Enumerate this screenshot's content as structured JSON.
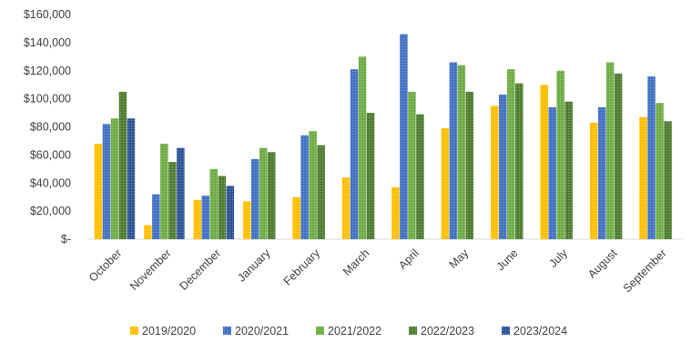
{
  "chart_data": {
    "type": "bar",
    "title": "",
    "xlabel": "",
    "ylabel": "",
    "ylim": [
      0,
      160000
    ],
    "y_ticks": [
      0,
      20000,
      40000,
      60000,
      80000,
      100000,
      120000,
      140000,
      160000
    ],
    "y_tick_labels": [
      "$-",
      "$20,000",
      "$40,000",
      "$60,000",
      "$80,000",
      "$100,000",
      "$120,000",
      "$140,000",
      "$160,000"
    ],
    "grid": false,
    "legend_position": "bottom",
    "categories": [
      "October",
      "November",
      "December",
      "January",
      "February",
      "March",
      "April",
      "May",
      "June",
      "July",
      "August",
      "September"
    ],
    "series": [
      {
        "name": "2019/2020",
        "color": "#FFC000",
        "values": [
          68000,
          10000,
          28000,
          27000,
          30000,
          44000,
          37000,
          79000,
          95000,
          110000,
          83000,
          87000
        ]
      },
      {
        "name": "2020/2021",
        "color": "#4472C4",
        "values": [
          82000,
          32000,
          31000,
          57000,
          74000,
          121000,
          146000,
          126000,
          103000,
          94000,
          94000,
          116000
        ]
      },
      {
        "name": "2021/2022",
        "color": "#70AD47",
        "values": [
          86000,
          68000,
          50000,
          65000,
          77000,
          130000,
          105000,
          124000,
          121000,
          120000,
          126000,
          97000
        ]
      },
      {
        "name": "2022/2023",
        "color": "#507E32",
        "values": [
          105000,
          55000,
          45000,
          62000,
          67000,
          90000,
          89000,
          105000,
          111000,
          98000,
          118000,
          84000
        ]
      },
      {
        "name": "2023/2024",
        "color": "#2F5597",
        "values": [
          86000,
          65000,
          38000,
          null,
          null,
          null,
          null,
          null,
          null,
          null,
          null,
          null
        ]
      }
    ]
  }
}
